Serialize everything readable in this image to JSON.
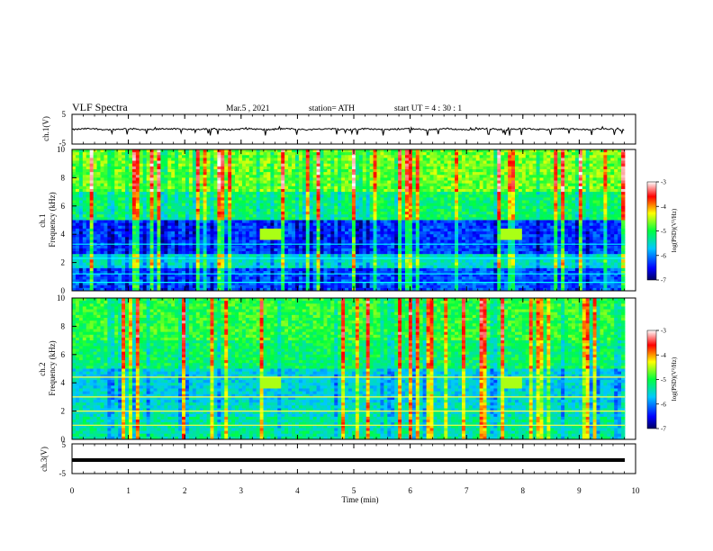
{
  "header": {
    "title": "VLF  Spectra",
    "date": "Mar.5  , 2021",
    "station": "station= ATH",
    "start_time": "start  UT  =   4 : 30 : 1"
  },
  "chart_data": [
    {
      "type": "line",
      "name": "ch1-voltage",
      "ylabel": "ch.1(V)",
      "ylim": [
        -5,
        5
      ],
      "yticks": [
        "5",
        "-5"
      ],
      "xlim": [
        0,
        10
      ],
      "approx_baseline": 0,
      "approx_spike_min": -2.2
    },
    {
      "type": "heatmap",
      "name": "ch1-spectrogram",
      "ylabel": "ch.1\nFrequency  (kHz)",
      "ylim": [
        0,
        10
      ],
      "yticks": [
        "0",
        "2",
        "4",
        "6",
        "8",
        "10"
      ],
      "xlim": [
        0,
        10
      ],
      "colorbar": {
        "label": "log(PSD)(V²/Hz)",
        "range": [
          -7,
          -3
        ],
        "ticks": [
          "-3",
          "-4",
          "-5",
          "-6",
          "-7"
        ]
      }
    },
    {
      "type": "heatmap",
      "name": "ch2-spectrogram",
      "ylabel": "ch.2\nFrequency  (kHz)",
      "ylim": [
        0,
        10
      ],
      "yticks": [
        "0",
        "2",
        "4",
        "6",
        "8",
        "10"
      ],
      "xlim": [
        0,
        10
      ],
      "colorbar": {
        "label": "log(PSD)(V²/Hz)",
        "range": [
          -7,
          -3
        ],
        "ticks": [
          "-3",
          "-4",
          "-5",
          "-6",
          "-7"
        ]
      }
    },
    {
      "type": "line",
      "name": "ch3-voltage",
      "ylabel": "ch.3(V)",
      "ylim": [
        -5,
        5
      ],
      "yticks": [
        "5",
        "-5"
      ],
      "xlim": [
        0,
        10
      ],
      "approx_constant_value": 0
    }
  ],
  "xaxis": {
    "label": "Time  (min)",
    "ticks": [
      "0",
      "1",
      "2",
      "3",
      "4",
      "5",
      "6",
      "7",
      "8",
      "9",
      "10"
    ]
  },
  "colors": {
    "line": "#000000",
    "bg": "#ffffff"
  }
}
